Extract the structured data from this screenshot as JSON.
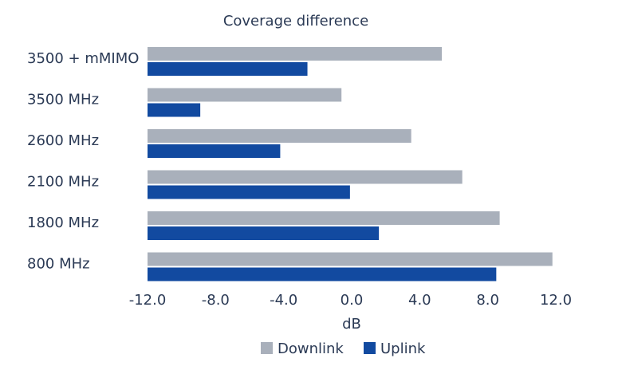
{
  "chart_data": {
    "type": "bar",
    "orientation": "horizontal",
    "title": "Coverage difference",
    "xlabel": "dB",
    "ylabel": "",
    "categories": [
      "3500 + mMIMO",
      "3500 MHz",
      "2600 MHz",
      "2100 MHz",
      "1800 MHz",
      "800 MHz"
    ],
    "series": [
      {
        "name": "Downlink",
        "color": "#a9b0bb",
        "values": [
          5.3,
          -0.6,
          3.5,
          6.5,
          8.7,
          11.8
        ]
      },
      {
        "name": "Uplink",
        "color": "#124aa0",
        "values": [
          -2.6,
          -8.9,
          -4.2,
          -0.1,
          1.6,
          8.5
        ]
      }
    ],
    "xlim": [
      -12,
      12
    ],
    "xticks": [
      "-12.0",
      "-8.0",
      "-4.0",
      "0.0",
      "4.0",
      "8.0",
      "12.0"
    ],
    "grid": false,
    "legend_position": "bottom"
  }
}
